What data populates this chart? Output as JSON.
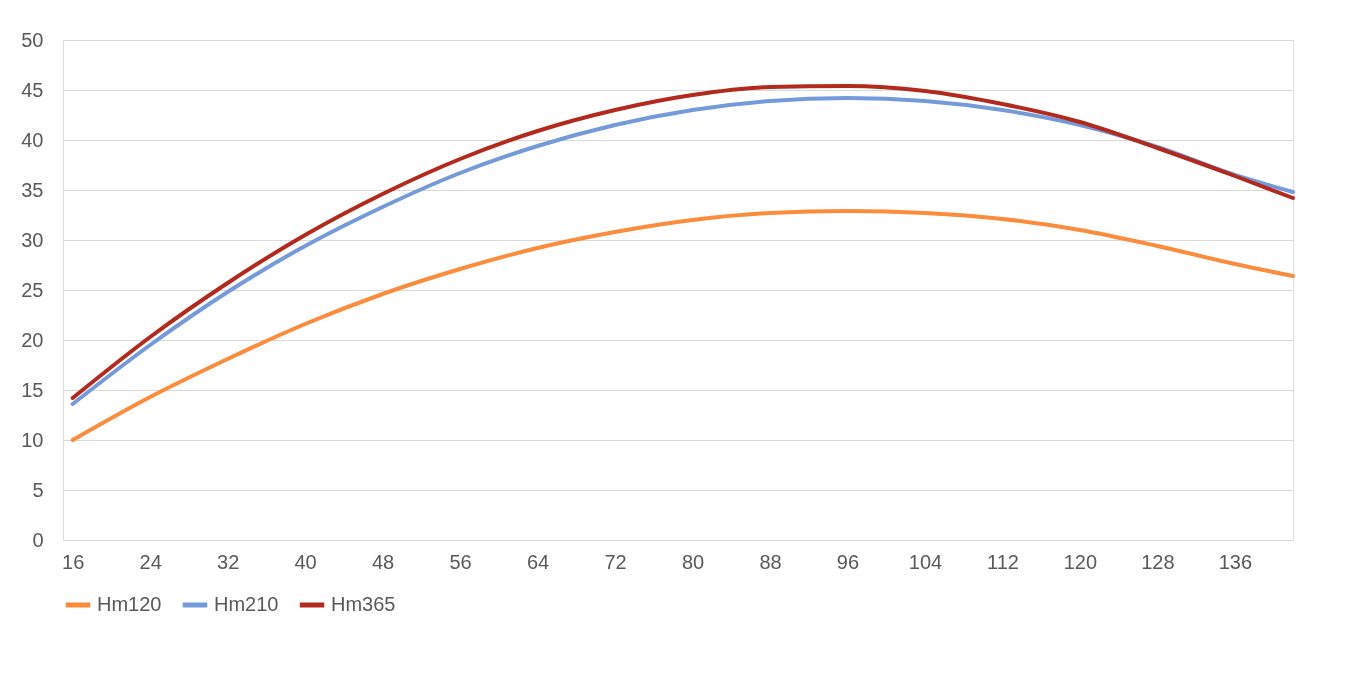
{
  "chart_data": {
    "type": "line",
    "x": [
      16,
      24,
      32,
      40,
      48,
      56,
      64,
      72,
      80,
      88,
      96,
      104,
      112,
      120,
      128,
      136,
      142
    ],
    "series": [
      {
        "name": "Hm120",
        "color": "#fb8c3c",
        "values": [
          10,
          14.3,
          18.1,
          21.6,
          24.6,
          27.1,
          29.2,
          30.8,
          32.0,
          32.7,
          32.9,
          32.7,
          32.1,
          31.0,
          29.4,
          27.6,
          26.4
        ]
      },
      {
        "name": "Hm210",
        "color": "#749ad9",
        "values": [
          13.6,
          19.5,
          24.8,
          29.4,
          33.3,
          36.7,
          39.4,
          41.5,
          43.0,
          43.9,
          44.2,
          43.9,
          43.0,
          41.5,
          39.3,
          36.5,
          34.8
        ]
      },
      {
        "name": "Hm365",
        "color": "#b22a1e",
        "values": [
          14.2,
          20.3,
          25.7,
          30.5,
          34.6,
          38.1,
          40.9,
          43.0,
          44.5,
          45.3,
          45.4,
          44.9,
          43.6,
          41.8,
          39.2,
          36.4,
          34.2
        ]
      }
    ],
    "xlim": [
      15,
      142
    ],
    "xticks": [
      16,
      24,
      32,
      40,
      48,
      56,
      64,
      72,
      80,
      88,
      96,
      104,
      112,
      120,
      128,
      136
    ],
    "ylim": [
      0,
      50
    ],
    "yticks": [
      0,
      5,
      10,
      15,
      20,
      25,
      30,
      35,
      40,
      45,
      50
    ],
    "grid": "y",
    "legend": "bottom",
    "marker": "none",
    "line_style": "solid"
  }
}
